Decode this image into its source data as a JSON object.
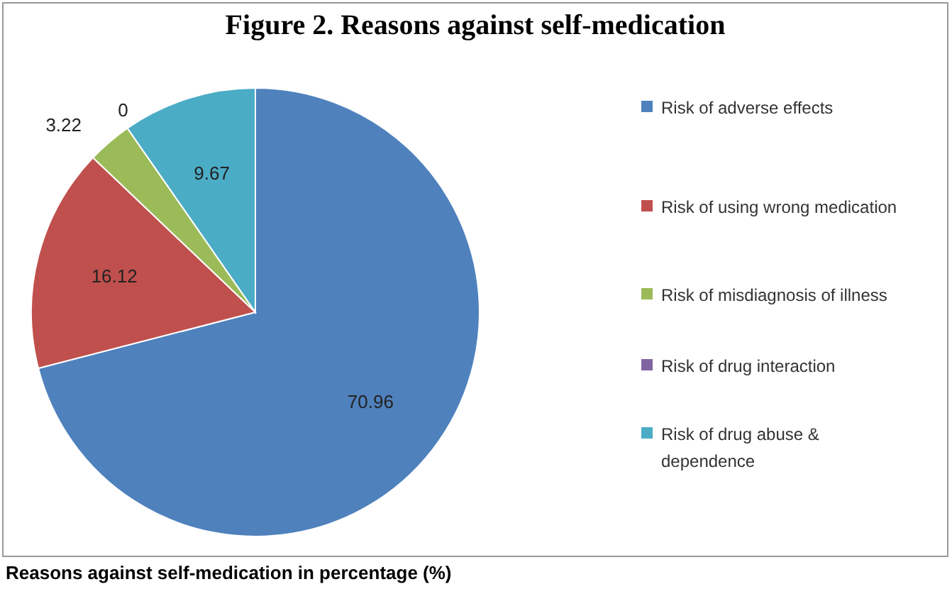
{
  "chart_data": {
    "type": "pie",
    "title": "Figure 2. Reasons against self-medication",
    "categories": [
      "Risk of adverse effects",
      "Risk of using wrong medication",
      "Risk of misdiagnosis of illness",
      "Risk of drug interaction",
      "Risk of drug abuse & dependence"
    ],
    "values": [
      70.96,
      16.12,
      3.22,
      0,
      9.67
    ],
    "colors": [
      "#4f81bd",
      "#c0504d",
      "#9bbb59",
      "#8064a2",
      "#4bacc6"
    ],
    "value_labels": [
      "70.96",
      "16.12",
      "3.22",
      "0",
      "9.67"
    ],
    "legend": "right",
    "annotations": [
      "Reasons against self-medication in percentage (%)"
    ]
  }
}
